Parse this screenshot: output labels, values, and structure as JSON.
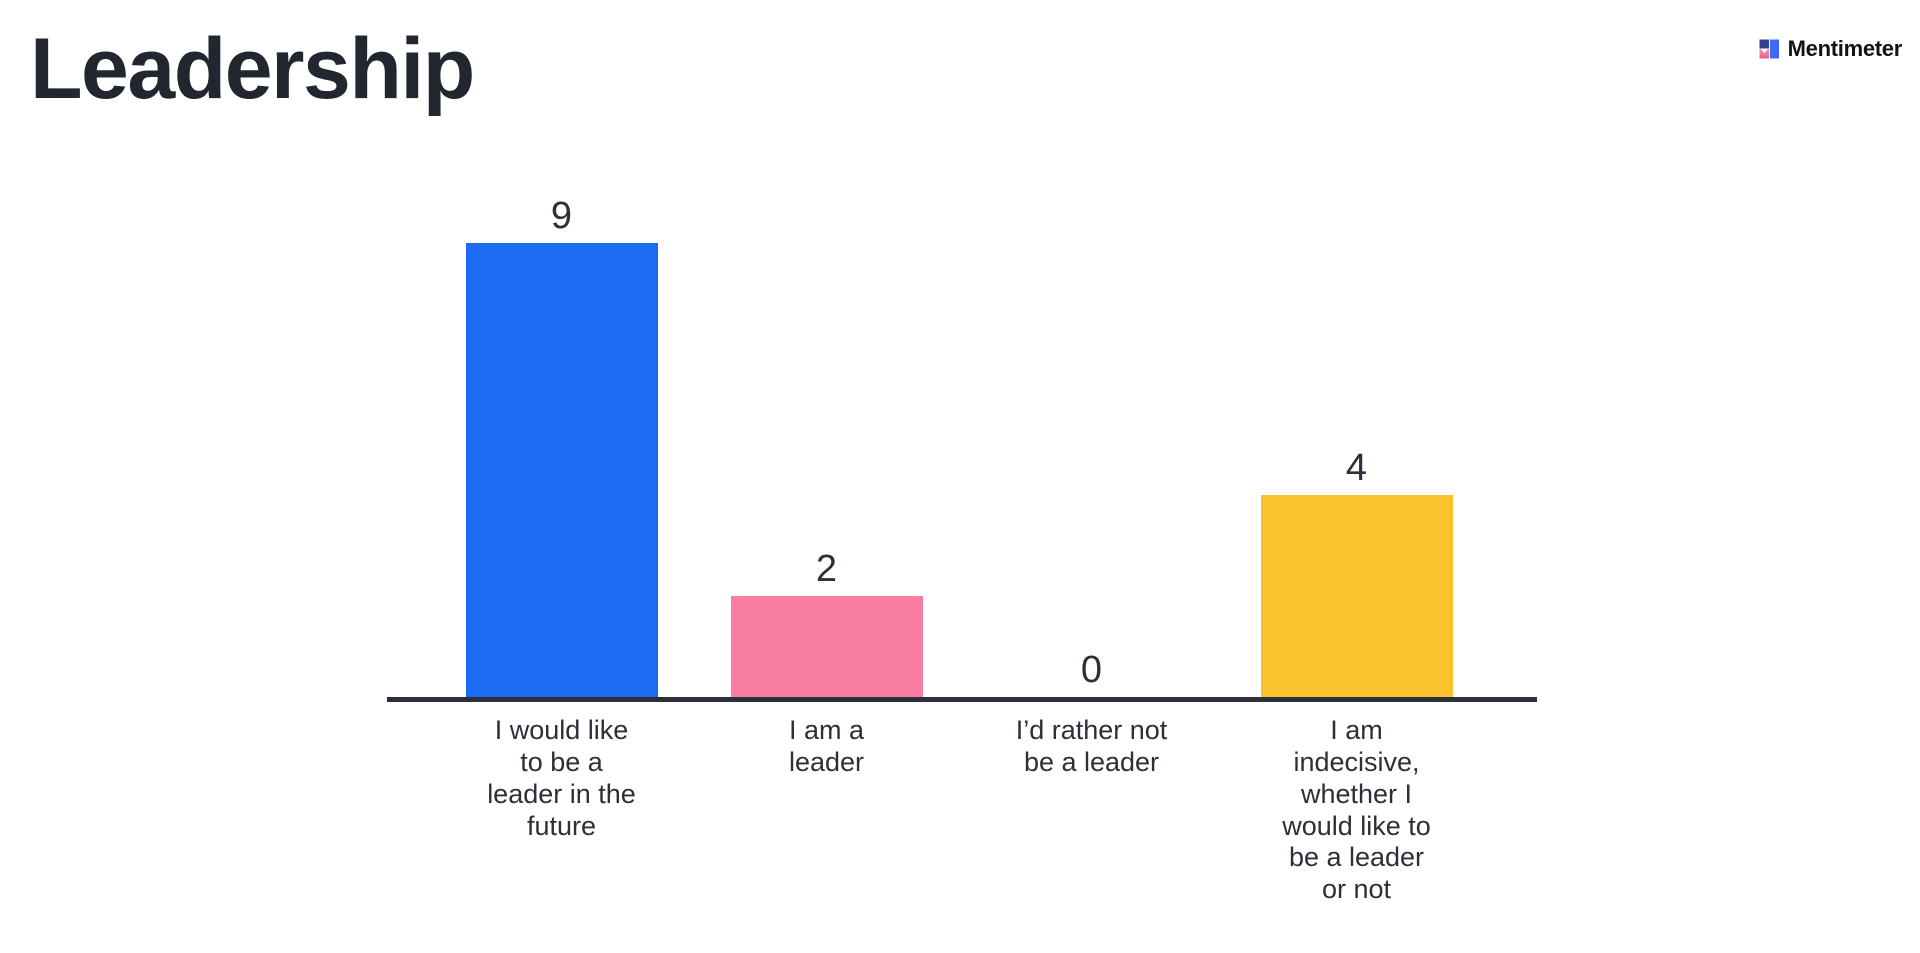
{
  "header": {
    "title": "Leadership"
  },
  "logo": {
    "text": "Mentimeter",
    "icon": "mentimeter-logo-icon"
  },
  "chart_data": {
    "type": "bar",
    "title": "Leadership",
    "categories": [
      "I would like\nto be a\nleader in the\nfuture",
      "I am a\nleader",
      "I’d rather not\nbe a leader",
      "I am\nindecisive,\nwhether I\nwould like to\nbe a leader\nor not"
    ],
    "values": [
      9,
      2,
      0,
      4
    ],
    "colors": [
      "#1C6BF2",
      "#F97CA2",
      null,
      "#FBC22F"
    ],
    "xlabel": "",
    "ylabel": "",
    "ylim": [
      0,
      9
    ],
    "grid": false,
    "legend": false,
    "value_labels_shown": true,
    "axis_color": "#2B303A",
    "text_color": "#2B3039"
  }
}
